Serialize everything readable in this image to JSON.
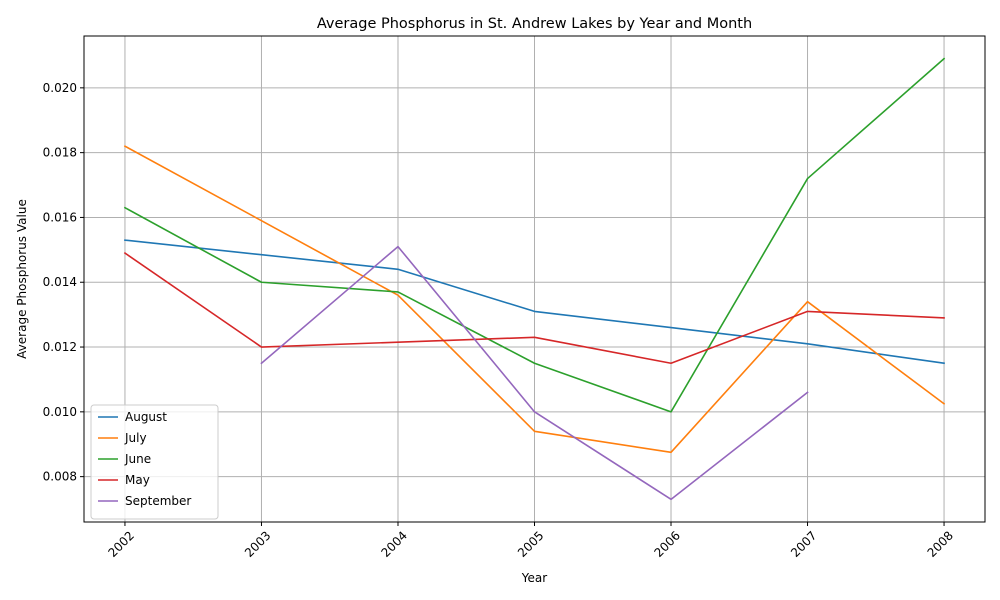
{
  "chart_data": {
    "type": "line",
    "title": "Average Phosphorus in St. Andrew Lakes by Year and Month",
    "xlabel": "Year",
    "ylabel": "Average Phosphorus Value",
    "x": [
      2002,
      2003,
      2004,
      2005,
      2006,
      2007,
      2008
    ],
    "x_tick_labels": [
      "2002",
      "2003",
      "2004",
      "2005",
      "2006",
      "2007",
      "2008"
    ],
    "y_ticks": [
      0.008,
      0.01,
      0.012,
      0.014,
      0.016,
      0.018,
      0.02
    ],
    "y_tick_labels": [
      "0.008",
      "0.010",
      "0.012",
      "0.014",
      "0.016",
      "0.018",
      "0.020"
    ],
    "xlim": [
      2001.7,
      2008.3
    ],
    "ylim": [
      0.0066,
      0.0216
    ],
    "grid": true,
    "legend_position": "lower-left",
    "series": [
      {
        "name": "August",
        "color": "#1f77b4",
        "values": [
          0.0153,
          0.01485,
          0.0144,
          0.0131,
          0.0126,
          0.0121,
          0.0115
        ]
      },
      {
        "name": "July",
        "color": "#ff7f0e",
        "values": [
          0.0182,
          0.0159,
          0.0136,
          0.0094,
          0.00875,
          0.0134,
          0.01025
        ]
      },
      {
        "name": "June",
        "color": "#2ca02c",
        "values": [
          0.0163,
          0.014,
          0.0137,
          0.0115,
          0.01,
          0.0172,
          0.0209
        ]
      },
      {
        "name": "May",
        "color": "#d62728",
        "values": [
          0.0149,
          0.012,
          0.01215,
          0.0123,
          0.0115,
          0.0131,
          0.0129
        ]
      },
      {
        "name": "September",
        "color": "#9467bd",
        "values": [
          null,
          0.0115,
          0.0151,
          0.01,
          0.0073,
          0.0106,
          null
        ]
      }
    ]
  }
}
